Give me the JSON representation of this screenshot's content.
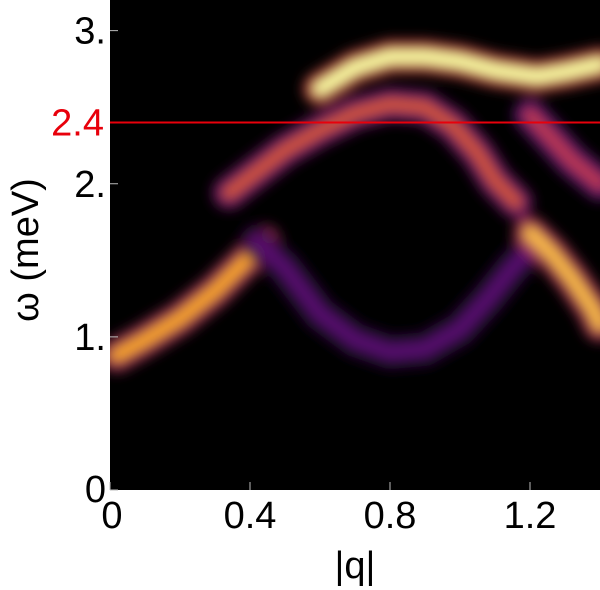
{
  "chart_data": {
    "type": "heatmap",
    "title": "",
    "xlabel": "|q|",
    "ylabel": "ω (meV)",
    "xlim": [
      0,
      1.4
    ],
    "ylim": [
      0,
      3.2
    ],
    "x_ticks": [
      {
        "value": 0,
        "label": "0"
      },
      {
        "value": 0.4,
        "label": "0.4"
      },
      {
        "value": 0.8,
        "label": "0.8"
      },
      {
        "value": 1.2,
        "label": "1.2"
      }
    ],
    "y_ticks": [
      {
        "value": 0,
        "label": "0"
      },
      {
        "value": 1,
        "label": "1."
      },
      {
        "value": 2,
        "label": "2."
      },
      {
        "value": 3,
        "label": "3."
      }
    ],
    "reference_line": {
      "value": 2.4,
      "label": "2.4",
      "color": "#e8000b"
    },
    "colormap": "inferno",
    "background_color": "#000000",
    "grid": false,
    "spectral_bands": [
      {
        "points": [
          [
            0.02,
            0.88
          ],
          [
            0.1,
            0.98
          ],
          [
            0.2,
            1.12
          ],
          [
            0.3,
            1.3
          ],
          [
            0.38,
            1.48
          ],
          [
            0.44,
            1.62
          ]
        ],
        "peak_intensity": 0.8
      },
      {
        "points": [
          [
            0.34,
            1.94
          ],
          [
            0.42,
            2.08
          ],
          [
            0.5,
            2.22
          ],
          [
            0.6,
            2.35
          ],
          [
            0.7,
            2.46
          ],
          [
            0.8,
            2.52
          ],
          [
            0.9,
            2.5
          ],
          [
            0.98,
            2.38
          ],
          [
            1.05,
            2.2
          ],
          [
            1.1,
            2.02
          ],
          [
            1.16,
            1.88
          ]
        ],
        "peak_intensity": 0.58
      },
      {
        "points": [
          [
            0.42,
            1.62
          ],
          [
            0.5,
            1.45
          ],
          [
            0.6,
            1.15
          ],
          [
            0.7,
            0.98
          ],
          [
            0.8,
            0.9
          ],
          [
            0.9,
            0.92
          ],
          [
            1.0,
            1.05
          ],
          [
            1.08,
            1.25
          ],
          [
            1.15,
            1.45
          ],
          [
            1.22,
            1.62
          ]
        ],
        "peak_intensity": 0.25
      },
      {
        "points": [
          [
            0.6,
            2.62
          ],
          [
            0.7,
            2.76
          ],
          [
            0.8,
            2.83
          ],
          [
            0.9,
            2.83
          ],
          [
            1.0,
            2.8
          ],
          [
            1.1,
            2.74
          ],
          [
            1.22,
            2.7
          ],
          [
            1.3,
            2.73
          ],
          [
            1.4,
            2.78
          ]
        ],
        "peak_intensity": 1.0
      },
      {
        "points": [
          [
            1.2,
            1.68
          ],
          [
            1.26,
            1.55
          ],
          [
            1.32,
            1.38
          ],
          [
            1.38,
            1.18
          ],
          [
            1.4,
            1.08
          ]
        ],
        "peak_intensity": 0.85
      },
      {
        "points": [
          [
            1.2,
            2.45
          ],
          [
            1.26,
            2.3
          ],
          [
            1.32,
            2.15
          ],
          [
            1.4,
            2.0
          ]
        ],
        "peak_intensity": 0.5
      }
    ]
  }
}
